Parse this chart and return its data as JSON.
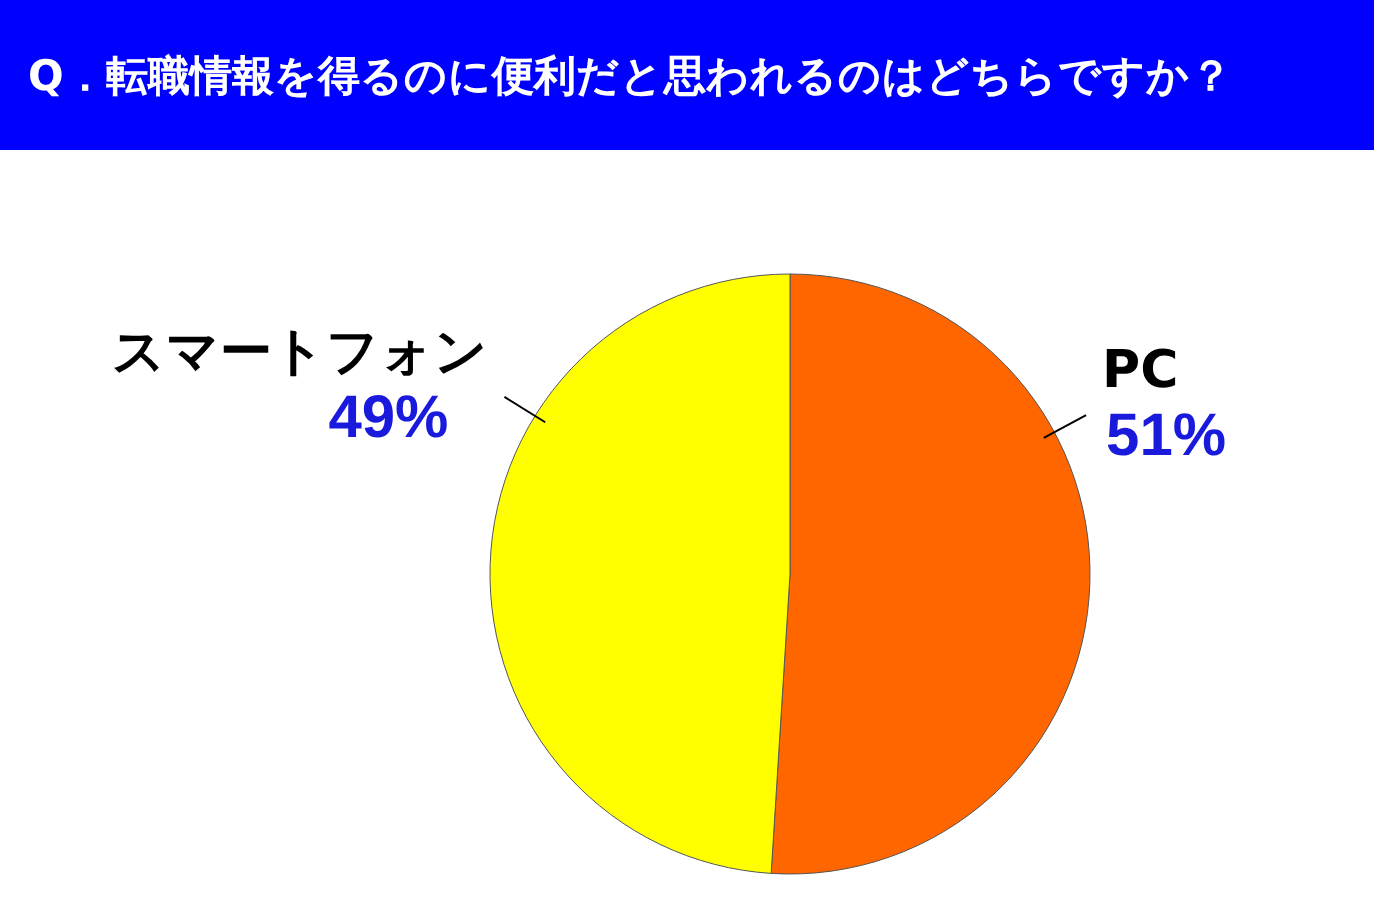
{
  "chart_data": {
    "type": "pie",
    "title": "Q．転職情報を得るのに便利だと思われるのはどちらですか？",
    "categories": [
      "PC",
      "スマートフォン"
    ],
    "values": [
      51,
      49
    ],
    "value_labels": [
      "51%",
      "49%"
    ],
    "colors": [
      "#ff6600",
      "#ffff00"
    ]
  }
}
